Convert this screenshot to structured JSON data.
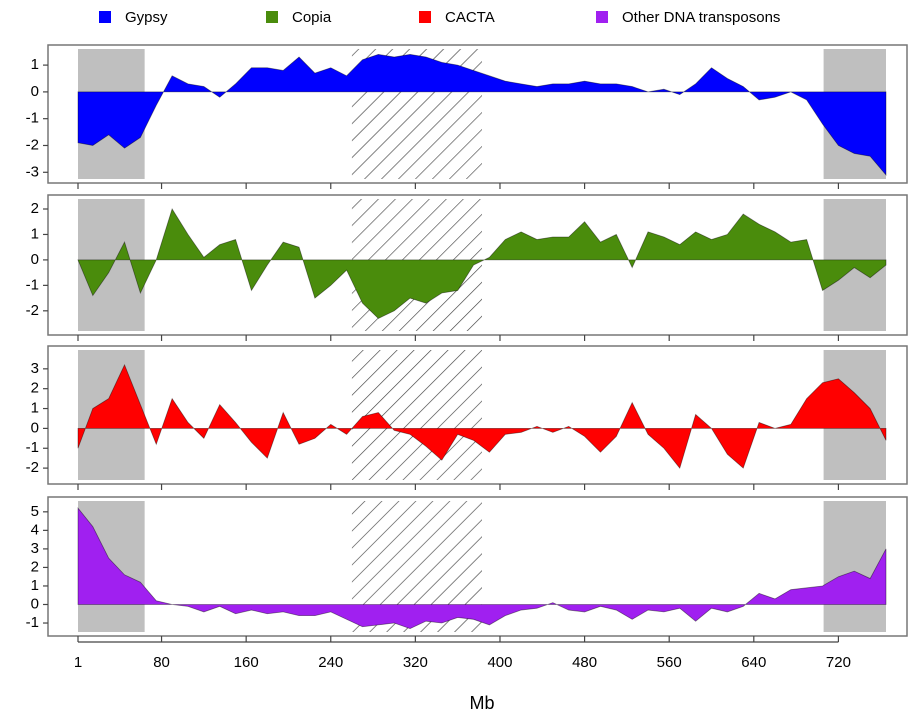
{
  "chart_data": [
    {
      "type": "area",
      "legend": "top",
      "x": [
        1,
        15,
        30,
        45,
        60,
        75,
        90,
        105,
        120,
        135,
        150,
        165,
        180,
        195,
        210,
        225,
        240,
        255,
        270,
        285,
        300,
        315,
        330,
        345,
        360,
        375,
        390,
        405,
        420,
        435,
        450,
        465,
        480,
        495,
        510,
        525,
        540,
        555,
        570,
        585,
        600,
        615,
        630,
        645,
        660,
        675,
        690,
        705,
        720,
        735,
        750,
        765
      ],
      "xlim": [
        1,
        765
      ],
      "xticks": [
        1,
        80,
        160,
        240,
        320,
        400,
        480,
        560,
        640,
        720
      ],
      "ylim": [
        -3.4,
        1.75
      ],
      "yticks": [
        -3,
        -2,
        -1,
        0,
        1
      ],
      "shaded": [
        [
          1,
          64
        ],
        [
          706,
          765
        ]
      ],
      "hatch": [
        260,
        383
      ],
      "series": [
        {
          "name": "Gypsy",
          "color": "#0000ff",
          "values": [
            -1.9,
            -2.0,
            -1.6,
            -2.1,
            -1.7,
            -0.5,
            0.6,
            0.3,
            0.2,
            -0.2,
            0.3,
            0.9,
            0.9,
            0.8,
            1.3,
            0.7,
            0.9,
            0.6,
            1.2,
            1.4,
            1.3,
            1.4,
            1.3,
            1.1,
            1.0,
            0.8,
            0.6,
            0.4,
            0.3,
            0.2,
            0.3,
            0.3,
            0.4,
            0.3,
            0.3,
            0.2,
            0.0,
            0.1,
            -0.1,
            0.3,
            0.9,
            0.5,
            0.2,
            -0.3,
            -0.2,
            0.0,
            -0.3,
            -1.2,
            -2.0,
            -2.3,
            -2.4,
            -3.1
          ]
        }
      ]
    },
    {
      "type": "area",
      "legend": "top",
      "x": [
        1,
        15,
        30,
        45,
        60,
        75,
        90,
        105,
        120,
        135,
        150,
        165,
        180,
        195,
        210,
        225,
        240,
        255,
        270,
        285,
        300,
        315,
        330,
        345,
        360,
        375,
        390,
        405,
        420,
        435,
        450,
        465,
        480,
        495,
        510,
        525,
        540,
        555,
        570,
        585,
        600,
        615,
        630,
        645,
        660,
        675,
        690,
        705,
        720,
        735,
        750,
        765
      ],
      "xlim": [
        1,
        765
      ],
      "xticks": [
        1,
        80,
        160,
        240,
        320,
        400,
        480,
        560,
        640,
        720
      ],
      "ylim": [
        -2.95,
        2.55
      ],
      "yticks": [
        -2,
        -1,
        0,
        1,
        2
      ],
      "shaded": [
        [
          1,
          64
        ],
        [
          706,
          765
        ]
      ],
      "hatch": [
        260,
        383
      ],
      "series": [
        {
          "name": "Copia",
          "color": "#4a8c0c",
          "values": [
            0.0,
            -1.4,
            -0.5,
            0.7,
            -1.3,
            0.0,
            2.0,
            1.0,
            0.1,
            0.6,
            0.8,
            -1.2,
            -0.2,
            0.7,
            0.5,
            -1.5,
            -1.0,
            -0.4,
            -1.7,
            -2.3,
            -2.0,
            -1.5,
            -1.7,
            -1.3,
            -1.2,
            -0.2,
            0.1,
            0.8,
            1.1,
            0.8,
            0.9,
            0.9,
            1.5,
            0.7,
            1.0,
            -0.3,
            1.1,
            0.9,
            0.6,
            1.1,
            0.8,
            1.0,
            1.8,
            1.4,
            1.1,
            0.7,
            0.8,
            -1.2,
            -0.8,
            -0.3,
            -0.7,
            -0.2
          ]
        }
      ]
    },
    {
      "type": "area",
      "legend": "top",
      "x": [
        1,
        15,
        30,
        45,
        60,
        75,
        90,
        105,
        120,
        135,
        150,
        165,
        180,
        195,
        210,
        225,
        240,
        255,
        270,
        285,
        300,
        315,
        330,
        345,
        360,
        375,
        390,
        405,
        420,
        435,
        450,
        465,
        480,
        495,
        510,
        525,
        540,
        555,
        570,
        585,
        600,
        615,
        630,
        645,
        660,
        675,
        690,
        705,
        720,
        735,
        750,
        765
      ],
      "xlim": [
        1,
        765
      ],
      "xticks": [
        1,
        80,
        160,
        240,
        320,
        400,
        480,
        560,
        640,
        720
      ],
      "ylim": [
        -2.8,
        4.15
      ],
      "yticks": [
        -2,
        -1,
        0,
        1,
        2,
        3
      ],
      "shaded": [
        [
          1,
          64
        ],
        [
          706,
          765
        ]
      ],
      "hatch": [
        260,
        383
      ],
      "series": [
        {
          "name": "CACTA",
          "color": "#ff0000",
          "values": [
            -1.0,
            1.0,
            1.5,
            3.2,
            1.2,
            -0.8,
            1.5,
            0.3,
            -0.5,
            1.2,
            0.3,
            -0.7,
            -1.5,
            0.8,
            -0.8,
            -0.5,
            0.2,
            -0.3,
            0.6,
            0.8,
            -0.1,
            -0.3,
            -0.9,
            -1.6,
            -0.3,
            -0.6,
            -1.2,
            -0.3,
            -0.2,
            0.1,
            -0.2,
            0.1,
            -0.4,
            -1.2,
            -0.4,
            1.3,
            -0.3,
            -1.0,
            -2.0,
            0.7,
            0.0,
            -1.3,
            -2.0,
            0.3,
            0.0,
            0.2,
            1.5,
            2.3,
            2.5,
            1.8,
            1.0,
            -0.6
          ]
        }
      ]
    },
    {
      "type": "area",
      "legend": "top",
      "x_label": "Mb",
      "x": [
        1,
        15,
        30,
        45,
        60,
        75,
        90,
        105,
        120,
        135,
        150,
        165,
        180,
        195,
        210,
        225,
        240,
        255,
        270,
        285,
        300,
        315,
        330,
        345,
        360,
        375,
        390,
        405,
        420,
        435,
        450,
        465,
        480,
        495,
        510,
        525,
        540,
        555,
        570,
        585,
        600,
        615,
        630,
        645,
        660,
        675,
        690,
        705,
        720,
        735,
        750,
        765
      ],
      "xlim": [
        1,
        765
      ],
      "xticks": [
        1,
        80,
        160,
        240,
        320,
        400,
        480,
        560,
        640,
        720
      ],
      "ylim": [
        -1.7,
        5.8
      ],
      "yticks": [
        -1,
        0,
        1,
        2,
        3,
        4,
        5
      ],
      "shaded": [
        [
          1,
          64
        ],
        [
          706,
          765
        ]
      ],
      "hatch": [
        260,
        383
      ],
      "series": [
        {
          "name": "Other DNA transposons",
          "color": "#a020f0",
          "values": [
            5.2,
            4.2,
            2.5,
            1.6,
            1.2,
            0.2,
            0.0,
            -0.1,
            -0.4,
            -0.1,
            -0.5,
            -0.3,
            -0.5,
            -0.4,
            -0.6,
            -0.6,
            -0.4,
            -0.8,
            -1.2,
            -1.1,
            -1.0,
            -1.3,
            -0.9,
            -1.0,
            -0.7,
            -0.8,
            -1.1,
            -0.6,
            -0.3,
            -0.2,
            0.1,
            -0.3,
            -0.4,
            -0.1,
            -0.3,
            -0.8,
            -0.3,
            -0.4,
            -0.2,
            -0.9,
            -0.2,
            -0.4,
            -0.1,
            0.6,
            0.3,
            0.8,
            0.9,
            1.0,
            1.5,
            1.8,
            1.4,
            3.0
          ]
        }
      ]
    }
  ]
}
